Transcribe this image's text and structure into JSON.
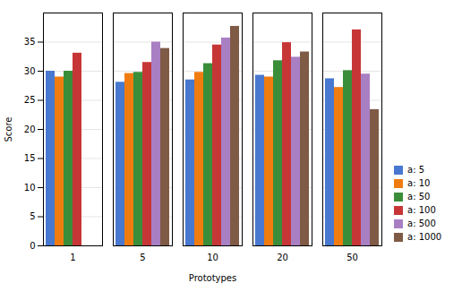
{
  "chart_data": {
    "type": "bar",
    "categories": [
      "1",
      "5",
      "10",
      "20",
      "50"
    ],
    "xlabel": "Prototypes",
    "ylabel": "Score",
    "ylim": [
      0,
      40
    ],
    "yticks": [
      0,
      5,
      10,
      15,
      20,
      25,
      30,
      35
    ],
    "grid": true,
    "legend": "lower right",
    "series": [
      {
        "name": "a: 5",
        "color": "#4878cf",
        "values": [
          30.0,
          28.1,
          28.5,
          29.3,
          28.7
        ]
      },
      {
        "name": "a: 10",
        "color": "#f07c10",
        "values": [
          29.0,
          29.6,
          29.8,
          29.0,
          27.2
        ]
      },
      {
        "name": "a: 50",
        "color": "#3a8e3a",
        "values": [
          30.0,
          29.8,
          31.3,
          31.8,
          30.1
        ]
      },
      {
        "name": "a: 100",
        "color": "#c73636",
        "values": [
          33.1,
          31.5,
          34.5,
          34.9,
          37.1
        ]
      },
      {
        "name": "a: 500",
        "color": "#a97fc4",
        "values": [
          null,
          35.0,
          35.7,
          32.4,
          29.5
        ]
      },
      {
        "name": "a: 1000",
        "color": "#7f5a45",
        "values": [
          null,
          33.9,
          37.7,
          33.3,
          23.4
        ]
      }
    ]
  }
}
